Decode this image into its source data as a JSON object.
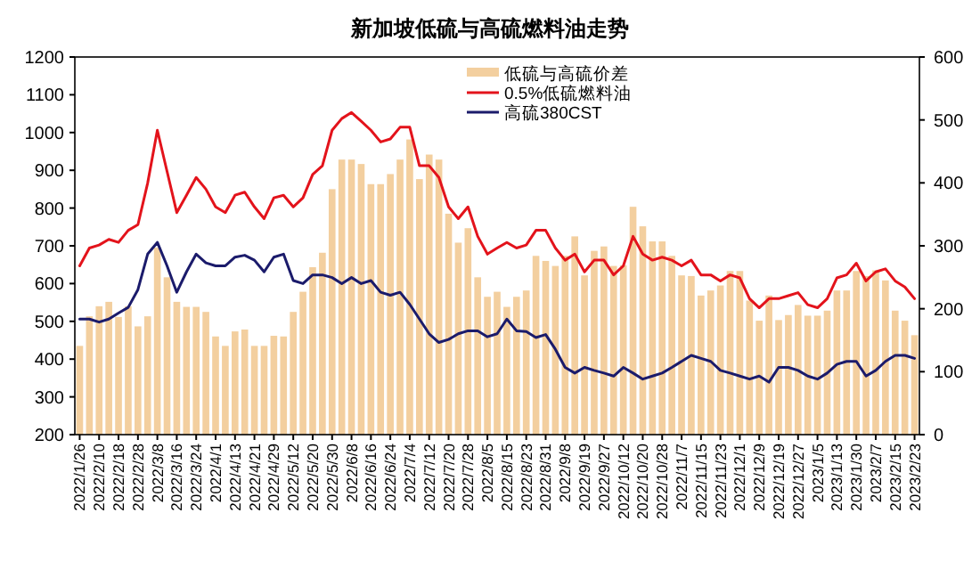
{
  "chart_data": {
    "type": "bar",
    "title": "新加坡低硫与高硫燃料油走势",
    "categories": [
      "2022/1/26",
      null,
      "2022/2/10",
      null,
      "2022/2/18",
      null,
      "2022/2/28",
      null,
      "2022/3/8",
      null,
      "2022/3/16",
      null,
      "2022/3/24",
      null,
      "2022/4/1",
      null,
      "2022/4/13",
      null,
      "2022/4/21",
      null,
      "2022/4/29",
      null,
      "2022/5/12",
      null,
      "2022/5/20",
      null,
      "2022/5/30",
      null,
      "2022/6/8",
      null,
      "2022/6/16",
      null,
      "2022/6/24",
      null,
      "2022/7/4",
      null,
      "2022/7/12",
      null,
      "2022/7/20",
      null,
      "2022/7/28",
      null,
      "2022/8/5",
      null,
      "2022/8/15",
      null,
      "2022/8/23",
      null,
      "2022/8/31",
      null,
      "2022/9/8",
      null,
      "2022/9/19",
      null,
      "2022/9/27",
      null,
      "2022/10/12",
      null,
      "2022/10/20",
      null,
      "2022/10/28",
      null,
      "2022/11/7",
      null,
      "2022/11/15",
      null,
      "2022/11/23",
      null,
      "2022/12/1",
      null,
      "2022/12/9",
      null,
      "2022/12/19",
      null,
      "2022/12/27",
      null,
      "2023/1/5",
      null,
      "2023/1/13",
      null,
      "2023/1/30",
      null,
      "2023/2/7",
      null,
      "2023/2/15",
      null,
      "2023/2/23"
    ],
    "series": [
      {
        "name": "低硫与高硫价差",
        "axis": "y2",
        "color": "#f3cf9f",
        "values": [
          141,
          188,
          204,
          211,
          187,
          204,
          172,
          188,
          297,
          250,
          211,
          203,
          203,
          195,
          156,
          141,
          164,
          167,
          141,
          141,
          157,
          156,
          195,
          227,
          266,
          289,
          390,
          437,
          437,
          430,
          398,
          398,
          414,
          437,
          469,
          406,
          445,
          437,
          351,
          305,
          328,
          250,
          219,
          227,
          203,
          219,
          229,
          284,
          276,
          268,
          284,
          315,
          253,
          292,
          299,
          268,
          269,
          362,
          331,
          307,
          307,
          284,
          253,
          252,
          221,
          229,
          237,
          260,
          260,
          213,
          181,
          221,
          182,
          190,
          206,
          189,
          189,
          197,
          229,
          229,
          260,
          252,
          261,
          245,
          197,
          181,
          158
        ]
      },
      {
        "name": "0.5%低硫燃料油",
        "type": "line",
        "color": "#e3131b",
        "values": [
          647,
          694,
          702,
          717,
          709,
          741,
          756,
          866,
          1006,
          897,
          788,
          834,
          881,
          850,
          803,
          788,
          834,
          842,
          803,
          772,
          827,
          834,
          803,
          827,
          889,
          912,
          1006,
          1037,
          1053,
          1030,
          1006,
          975,
          983,
          1014,
          1014,
          912,
          912,
          881,
          803,
          772,
          803,
          725,
          678,
          694,
          709,
          694,
          702,
          741,
          741,
          694,
          662,
          678,
          631,
          662,
          662,
          623,
          647,
          725,
          678,
          662,
          670,
          662,
          647,
          662,
          623,
          623,
          607,
          623,
          615,
          560,
          536,
          560,
          560,
          568,
          576,
          544,
          536,
          560,
          615,
          623,
          654,
          607,
          631,
          639,
          607,
          591,
          560
        ]
      },
      {
        "name": "高硫380CST",
        "type": "line",
        "color": "#1b1b6b",
        "values": [
          506,
          506,
          498,
          506,
          522,
          537,
          584,
          678,
          709,
          647,
          577,
          631,
          678,
          655,
          647,
          647,
          670,
          675,
          662,
          631,
          670,
          678,
          608,
          600,
          623,
          623,
          616,
          600,
          616,
          600,
          608,
          577,
          569,
          577,
          545,
          506,
          467,
          444,
          452,
          467,
          475,
          475,
          459,
          467,
          506,
          475,
          473,
          457,
          465,
          426,
          378,
          363,
          378,
          370,
          363,
          355,
          378,
          363,
          347,
          355,
          363,
          378,
          394,
          410,
          402,
          394,
          370,
          363,
          355,
          347,
          355,
          339,
          378,
          378,
          370,
          355,
          347,
          363,
          386,
          394,
          394,
          355,
          370,
          394,
          410,
          410,
          402
        ]
      }
    ],
    "ylim": [
      200,
      1200
    ],
    "yticks": [
      200,
      300,
      400,
      500,
      600,
      700,
      800,
      900,
      1000,
      1100,
      1200
    ],
    "y2lim": [
      0,
      600
    ],
    "y2ticks": [
      0,
      100,
      200,
      300,
      400,
      500,
      600
    ],
    "legend": "top"
  }
}
